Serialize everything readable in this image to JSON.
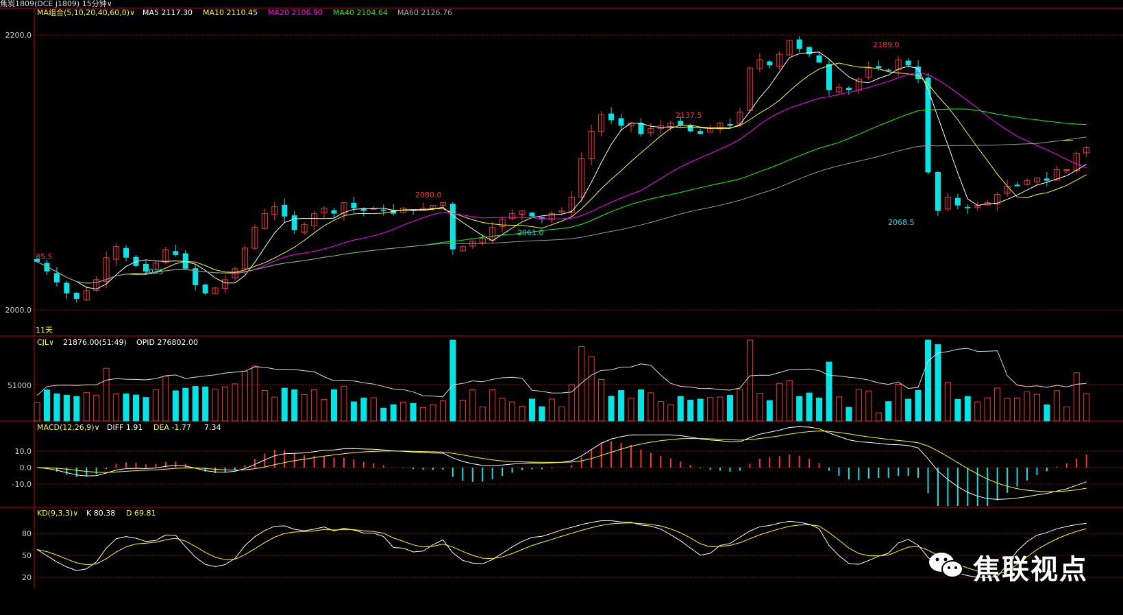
{
  "header": {
    "instrument": "焦炭1809(DCE j1809)",
    "period": "15分钟",
    "caret": "∨"
  },
  "panel_price": {
    "indicator": "MA组合(5,10,20,40,60,0)",
    "ma5": "MA5 2117.30",
    "ma10": "MA10 2110.45",
    "ma20": "MA20 2106.90",
    "ma40": "MA40 2104.64",
    "ma60": "MA60 2126.76",
    "y_labels": [
      "2200.0",
      "2000.0"
    ],
    "days": "11天",
    "annotations": [
      "35.5",
      "2033",
      "2080.0",
      "2061.0",
      "2137.5",
      "2189.0",
      "2068.5"
    ]
  },
  "panel_volume": {
    "indicator": "CJL",
    "value": "21876.00(51:49)",
    "opid": "OPID 276802.00",
    "y_label": "51000"
  },
  "panel_macd": {
    "indicator": "MACD(12,26,9)",
    "diff": "DIFF 1.91",
    "dea": "DEA -1.77",
    "macd": "7.34",
    "y_labels": [
      "10.0",
      "0.0",
      "-10.0"
    ]
  },
  "panel_kd": {
    "indicator": "KD(9,3,3)",
    "k": "K 80.38",
    "d": "D 69.81",
    "y_labels": [
      "80",
      "50",
      "20"
    ]
  },
  "watermark": "焦联视点",
  "colors": {
    "up": "#ff3232",
    "down": "#00e5e5",
    "ma5": "#ffffff",
    "ma10": "#ffff00",
    "ma20": "#ff00ff",
    "ma40": "#00ff00",
    "ma60": "#999999",
    "grid": "#a00000",
    "border": "#c00000"
  },
  "chart_data": {
    "type": "candlestick",
    "title": "焦炭1809 15分钟",
    "ylim": [
      2000,
      2200
    ],
    "key_prices": [
      {
        "label": "2080.0",
        "value": 2080.0
      },
      {
        "label": "2061.0",
        "value": 2061.0
      },
      {
        "label": "2137.5",
        "value": 2137.5
      },
      {
        "label": "2189.0",
        "value": 2189.0
      },
      {
        "label": "2068.5",
        "value": 2068.5
      }
    ],
    "price_path": [
      2035,
      2028,
      2020,
      2012,
      2008,
      2014,
      2022,
      2038,
      2046,
      2038,
      2032,
      2028,
      2034,
      2044,
      2040,
      2030,
      2018,
      2012,
      2016,
      2022,
      2030,
      2045,
      2060,
      2070,
      2075,
      2068,
      2058,
      2062,
      2070,
      2074,
      2070,
      2078,
      2074,
      2072,
      2074,
      2072,
      2070,
      2074,
      2072,
      2074,
      2076,
      2078,
      2044,
      2046,
      2050,
      2052,
      2060,
      2066,
      2070,
      2072,
      2068,
      2066,
      2070,
      2072,
      2082,
      2110,
      2130,
      2142,
      2138,
      2134,
      2136,
      2128,
      2132,
      2134,
      2136,
      2134,
      2130,
      2128,
      2132,
      2136,
      2134,
      2144,
      2176,
      2182,
      2178,
      2186,
      2196,
      2190,
      2186,
      2180,
      2160,
      2162,
      2160,
      2168,
      2176,
      2176,
      2174,
      2182,
      2178,
      2168,
      2100,
      2072,
      2082,
      2076,
      2074,
      2076,
      2078,
      2084,
      2090,
      2090,
      2094,
      2096,
      2094,
      2102,
      2102,
      2114,
      2118
    ],
    "macd_range": [
      -15,
      15
    ],
    "kd_range": [
      0,
      100
    ]
  }
}
